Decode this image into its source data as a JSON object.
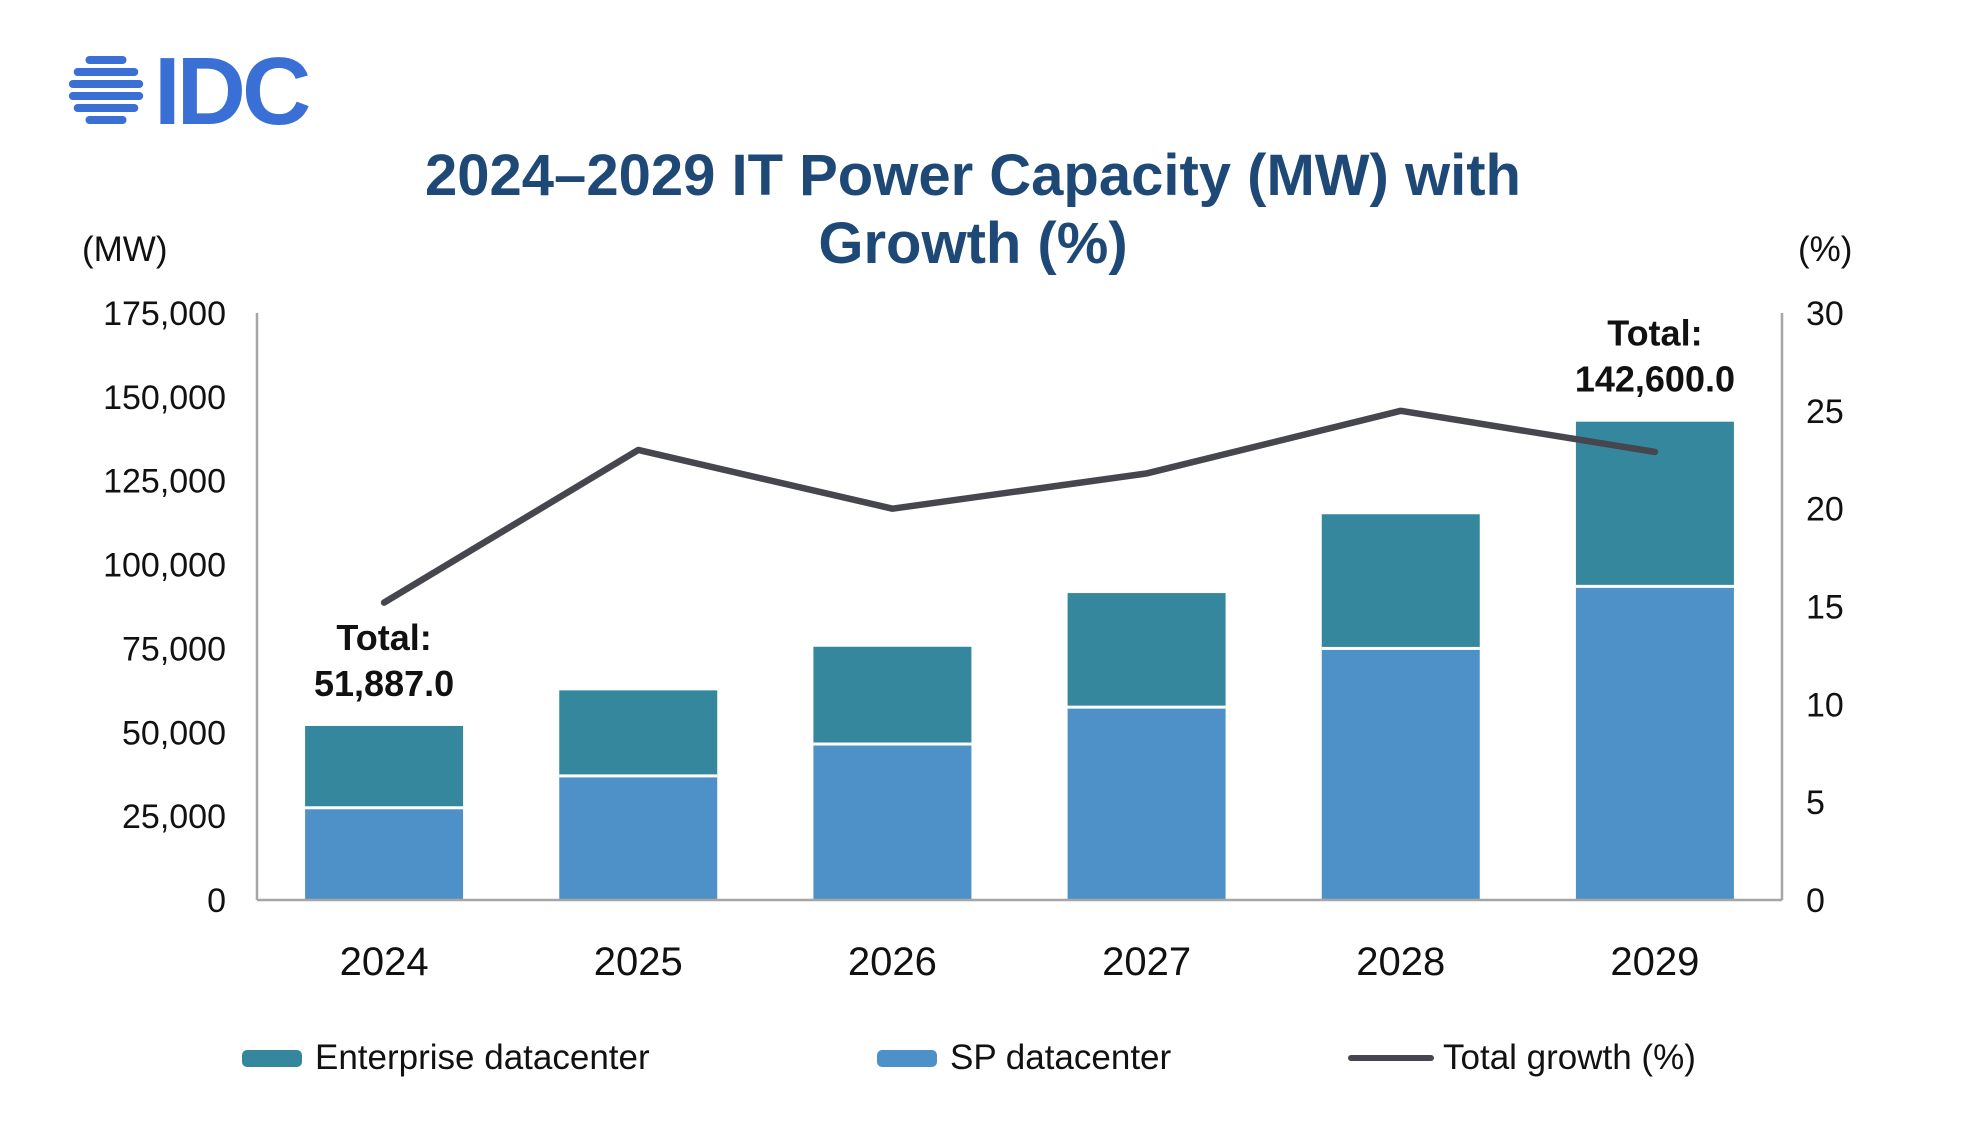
{
  "logo": {
    "text": "IDC",
    "color": "#3a70d6"
  },
  "title": {
    "line1": "2024–2029 IT Power Capacity (MW) with",
    "line2": "Growth (%)",
    "color": "#1e4976"
  },
  "axes": {
    "left_unit": "(MW)",
    "right_unit": "(%)",
    "left_ticks": [
      "175,000",
      "150,000",
      "125,000",
      "100,000",
      "75,000",
      "50,000",
      "25,000",
      "0"
    ],
    "right_ticks": [
      "30",
      "25",
      "20",
      "15",
      "10",
      "5",
      "0"
    ],
    "x_labels": [
      "2024",
      "2025",
      "2026",
      "2027",
      "2028",
      "2029"
    ],
    "axis_line_color": "#a6a6a6"
  },
  "annotations": [
    {
      "category": "2024",
      "label": "Total:",
      "value": "51,887.0"
    },
    {
      "category": "2029",
      "label": "Total:",
      "value": "142,600.0"
    }
  ],
  "legend": [
    {
      "label": "Enterprise datacenter",
      "type": "swatch",
      "color": "#35879e"
    },
    {
      "label": "SP datacenter",
      "type": "swatch",
      "color": "#4e90c8"
    },
    {
      "label": "Total growth (%)",
      "type": "line",
      "color": "#46464e"
    }
  ],
  "chart_data": {
    "type": "bar+line",
    "title": "2024–2029 IT Power Capacity (MW) with Growth (%)",
    "categories": [
      "2024",
      "2025",
      "2026",
      "2027",
      "2028",
      "2029"
    ],
    "series": [
      {
        "name": "SP datacenter",
        "type": "bar",
        "stack": true,
        "axis": "left",
        "color": "#4e90c8",
        "values": [
          27500,
          37000,
          46500,
          57500,
          75000,
          93500
        ]
      },
      {
        "name": "Enterprise datacenter",
        "type": "bar",
        "stack": true,
        "axis": "left",
        "color": "#35879e",
        "values": [
          24387,
          25500,
          29000,
          34000,
          40000,
          49100
        ]
      },
      {
        "name": "Total growth (%)",
        "type": "line",
        "axis": "right",
        "color": "#46464e",
        "values": [
          15.2,
          23.0,
          20.0,
          21.8,
          25.0,
          22.9
        ]
      }
    ],
    "totals": [
      51887,
      62500,
      75500,
      91500,
      115000,
      142600
    ],
    "left_axis": {
      "label": "(MW)",
      "min": 0,
      "max": 175000,
      "step": 25000
    },
    "right_axis": {
      "label": "(%)",
      "min": 0,
      "max": 30,
      "step": 5
    },
    "grid": false,
    "legend_position": "bottom"
  }
}
